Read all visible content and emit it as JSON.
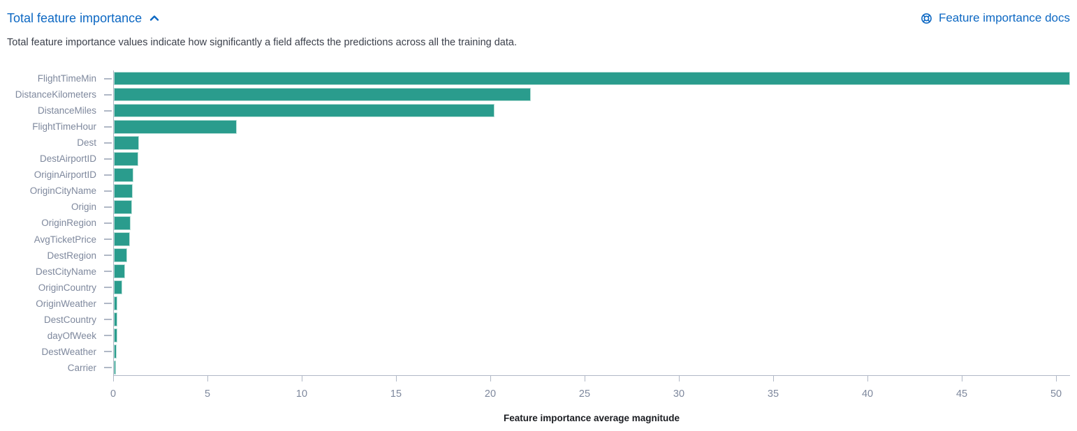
{
  "header": {
    "title": "Total feature importance",
    "docs_link": "Feature importance docs"
  },
  "description": "Total feature importance values indicate how significantly a field affects the predictions across all the training data.",
  "colors": {
    "link": "#0d68c3",
    "bar": "#2a9c8d",
    "bar_border": "#b5ded6",
    "axis_line": "#b0b8c6",
    "tick_label": "#7e889d",
    "text": "#3a3f4a",
    "axis_title": "#1a1c21"
  },
  "chart_data": {
    "type": "bar",
    "orientation": "horizontal",
    "title": "Total feature importance",
    "xlabel": "Feature importance average magnitude",
    "ylabel": "",
    "categories": [
      "FlightTimeMin",
      "DistanceKilometers",
      "DistanceMiles",
      "FlightTimeHour",
      "Dest",
      "DestAirportID",
      "OriginAirportID",
      "OriginCityName",
      "Origin",
      "OriginRegion",
      "AvgTicketPrice",
      "DestRegion",
      "DestCityName",
      "OriginCountry",
      "OriginWeather",
      "DestCountry",
      "dayOfWeek",
      "DestWeather",
      "Carrier"
    ],
    "values": [
      50.7,
      22.1,
      20.2,
      6.5,
      1.35,
      1.3,
      1.05,
      1.0,
      0.95,
      0.9,
      0.85,
      0.72,
      0.6,
      0.45,
      0.2,
      0.19,
      0.18,
      0.16,
      0.1
    ],
    "xticks": [
      0,
      5,
      10,
      15,
      20,
      25,
      30,
      35,
      40,
      45,
      50
    ],
    "xlim": [
      0,
      50.74
    ],
    "grid": false,
    "legend": false
  },
  "icons": {
    "collapse": "chevron-up-icon",
    "docs": "help-icon"
  }
}
